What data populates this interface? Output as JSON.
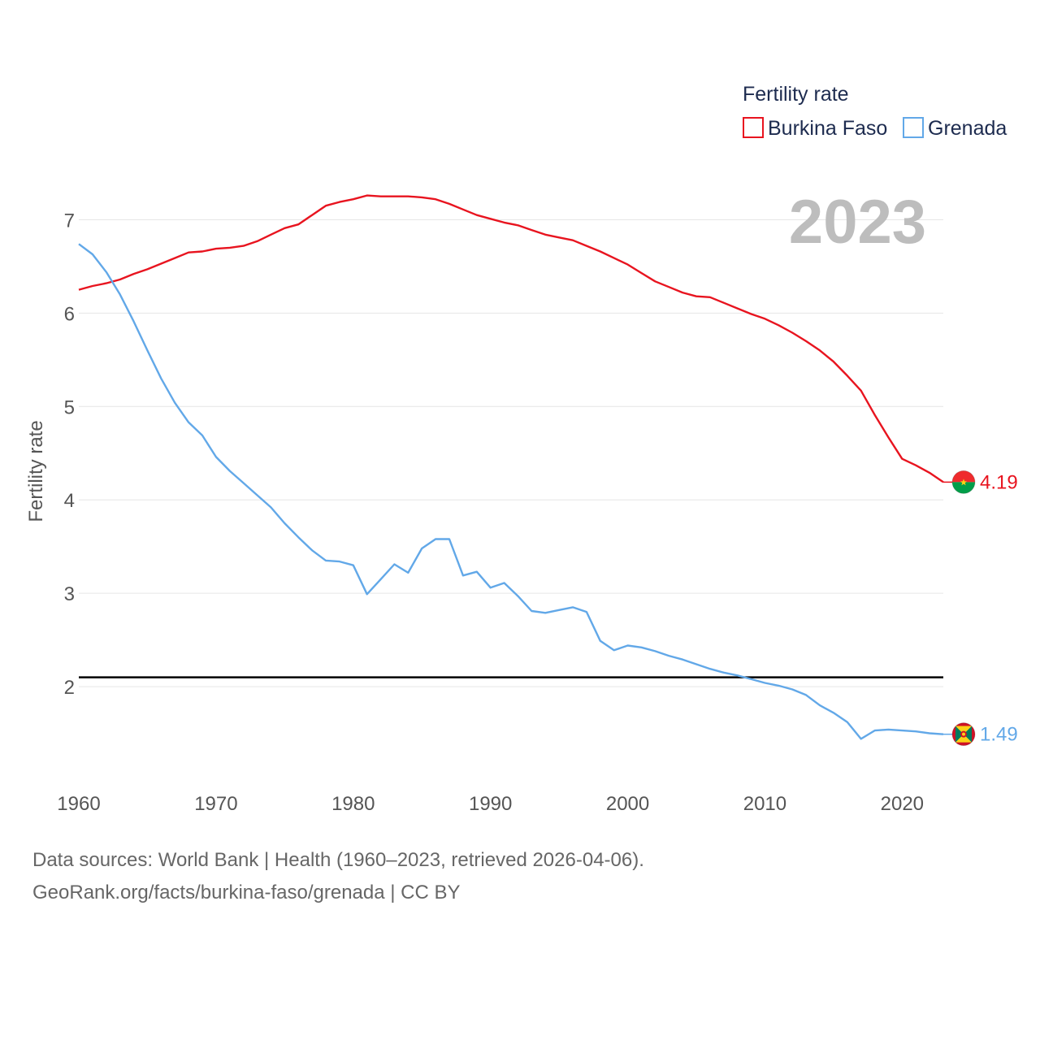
{
  "chart_data": {
    "type": "line",
    "title": "",
    "xlabel": "",
    "ylabel": "Fertility rate",
    "xlim": [
      1960,
      2023
    ],
    "ylim": [
      1.0,
      7.7
    ],
    "x_ticks": [
      1960,
      1970,
      1980,
      1990,
      2000,
      2010,
      2020
    ],
    "y_ticks": [
      2,
      3,
      4,
      5,
      6,
      7
    ],
    "grid": true,
    "legend_position": "top-right",
    "legend_title": "Fertility rate",
    "year_label": "2023",
    "reference_line": {
      "y": 2.1,
      "color": "#000000"
    },
    "x": [
      1960,
      1961,
      1962,
      1963,
      1964,
      1965,
      1966,
      1967,
      1968,
      1969,
      1970,
      1971,
      1972,
      1973,
      1974,
      1975,
      1976,
      1977,
      1978,
      1979,
      1980,
      1981,
      1982,
      1983,
      1984,
      1985,
      1986,
      1987,
      1988,
      1989,
      1990,
      1991,
      1992,
      1993,
      1994,
      1995,
      1996,
      1997,
      1998,
      1999,
      2000,
      2001,
      2002,
      2003,
      2004,
      2005,
      2006,
      2007,
      2008,
      2009,
      2010,
      2011,
      2012,
      2013,
      2014,
      2015,
      2016,
      2017,
      2018,
      2019,
      2020,
      2021,
      2022,
      2023
    ],
    "series": [
      {
        "name": "Burkina Faso",
        "color": "#e8141f",
        "end_label": "4.19",
        "values": [
          6.25,
          6.29,
          6.32,
          6.36,
          6.42,
          6.47,
          6.53,
          6.59,
          6.65,
          6.66,
          6.69,
          6.7,
          6.72,
          6.77,
          6.84,
          6.91,
          6.95,
          7.05,
          7.15,
          7.19,
          7.22,
          7.26,
          7.25,
          7.25,
          7.25,
          7.24,
          7.22,
          7.17,
          7.11,
          7.05,
          7.01,
          6.97,
          6.94,
          6.89,
          6.84,
          6.81,
          6.78,
          6.72,
          6.66,
          6.59,
          6.52,
          6.43,
          6.34,
          6.28,
          6.22,
          6.18,
          6.17,
          6.11,
          6.05,
          5.99,
          5.94,
          5.87,
          5.79,
          5.7,
          5.6,
          5.48,
          5.33,
          5.17,
          4.91,
          4.67,
          4.44,
          4.37,
          4.29,
          4.19
        ]
      },
      {
        "name": "Grenada",
        "color": "#62a8e8",
        "end_label": "1.49",
        "values": [
          6.74,
          6.63,
          6.44,
          6.2,
          5.91,
          5.6,
          5.3,
          5.04,
          4.83,
          4.69,
          4.46,
          4.31,
          4.18,
          4.05,
          3.92,
          3.75,
          3.6,
          3.46,
          3.35,
          3.34,
          3.3,
          2.99,
          3.15,
          3.31,
          3.22,
          3.48,
          3.58,
          3.58,
          3.19,
          3.23,
          3.06,
          3.11,
          2.97,
          2.81,
          2.79,
          2.82,
          2.85,
          2.8,
          2.49,
          2.39,
          2.44,
          2.42,
          2.38,
          2.33,
          2.29,
          2.24,
          2.19,
          2.15,
          2.12,
          2.08,
          2.04,
          2.01,
          1.97,
          1.91,
          1.8,
          1.72,
          1.62,
          1.44,
          1.53,
          1.54,
          1.53,
          1.52,
          1.5,
          1.49
        ]
      }
    ]
  },
  "footer": {
    "sources": "Data sources: World Bank | Health (1960–2023, retrieved 2026-04-06).",
    "credit": "GeoRank.org/facts/burkina-faso/grenada | CC BY"
  }
}
